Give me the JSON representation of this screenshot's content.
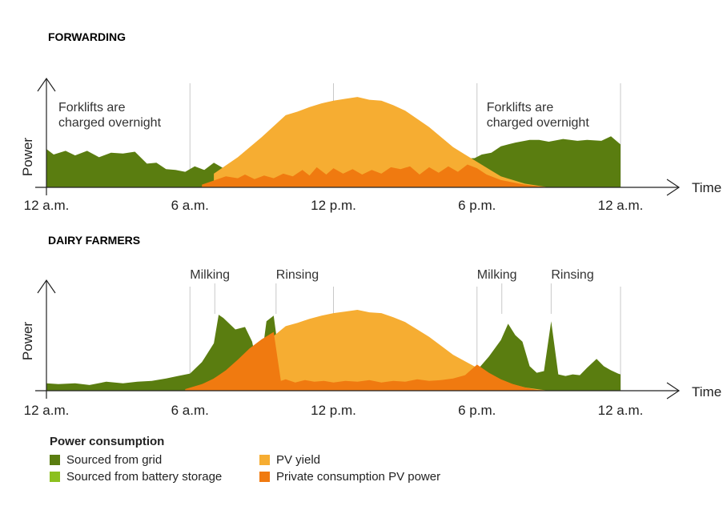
{
  "colors": {
    "grid": "#5a7d10",
    "battery": "#8cc01e",
    "pv_yield": "#f6ad32",
    "private_pv": "#f07a10",
    "accent_title": "#8cbb1e",
    "axis": "#222222",
    "guide": "#c8c8c8"
  },
  "legend": {
    "title": "Power consumption",
    "items": [
      {
        "label": "Sourced from grid",
        "color": "#5a7d10"
      },
      {
        "label": "PV yield",
        "color": "#f6ad32"
      },
      {
        "label": "Sourced from battery storage",
        "color": "#8cc01e"
      },
      {
        "label": "Private consumption PV power",
        "color": "#f07a10"
      }
    ]
  },
  "chart_data": [
    {
      "type": "area",
      "title": "FORWARDING",
      "ylabel": "Power",
      "xlabel": "Time",
      "xlim": [
        0,
        24
      ],
      "ylim": [
        0,
        100
      ],
      "tick_labels": [
        "12 a.m.",
        "6 a.m.",
        "12 p.m.",
        "6 p.m.",
        "12 a.m."
      ],
      "tick_values": [
        0,
        6,
        12,
        18,
        24
      ],
      "annotations": [
        {
          "lines": [
            "Forklifts are",
            "charged overnight"
          ],
          "x": 0.5
        },
        {
          "lines": [
            "Forklifts are",
            "charged overnight"
          ],
          "x": 18.4
        }
      ],
      "series": [
        {
          "name": "Sourced from grid",
          "color_key": "grid",
          "x": [
            0,
            0.3,
            0.8,
            1.2,
            1.7,
            2.2,
            2.7,
            3.2,
            3.7,
            4.2,
            4.6,
            5.0,
            5.4,
            5.8,
            6.2,
            6.6,
            7.0,
            7.4,
            17.9,
            18.2,
            18.6,
            19.0,
            19.6,
            20.2,
            20.6,
            21.0,
            21.6,
            22.2,
            22.6,
            23.2,
            23.6,
            24
          ],
          "y": [
            42,
            36,
            40,
            35,
            40,
            33,
            38,
            37,
            39,
            26,
            27,
            20,
            19,
            17,
            23,
            19,
            27,
            21,
            32,
            36,
            38,
            45,
            49,
            52,
            52,
            50,
            53,
            51,
            52,
            51,
            56,
            47
          ]
        },
        {
          "name": "PV yield",
          "color_key": "pv_yield",
          "x": [
            7.0,
            8.0,
            9.0,
            10.0,
            10.5,
            11.0,
            11.5,
            12.0,
            12.5,
            13.0,
            13.5,
            14.0,
            14.5,
            15.0,
            15.5,
            16.0,
            16.5,
            17.0,
            17.5,
            18.0,
            18.5,
            19.0,
            20.0,
            21.0
          ],
          "y": [
            15,
            33,
            55,
            79,
            83,
            88,
            92,
            95,
            97,
            99,
            96,
            95,
            90,
            84,
            75,
            66,
            55,
            44,
            36,
            28,
            20,
            12,
            4,
            0
          ]
        },
        {
          "name": "Private consumption PV power",
          "color_key": "private_pv",
          "x": [
            6.5,
            7.5,
            8.0,
            8.3,
            8.7,
            9.1,
            9.5,
            9.9,
            10.3,
            10.7,
            11.0,
            11.3,
            11.7,
            12.0,
            12.4,
            12.8,
            13.2,
            13.6,
            14.0,
            14.4,
            14.8,
            15.2,
            15.6,
            16.0,
            16.4,
            16.8,
            17.2,
            17.6,
            18.0,
            18.4,
            19.0,
            20.0,
            21.0
          ],
          "y": [
            3,
            12,
            10,
            14,
            9,
            13,
            10,
            15,
            12,
            19,
            13,
            22,
            14,
            21,
            15,
            20,
            14,
            19,
            15,
            22,
            20,
            23,
            14,
            22,
            16,
            23,
            17,
            25,
            21,
            14,
            8,
            3,
            0
          ]
        }
      ]
    },
    {
      "type": "area",
      "title": "DAIRY FARMERS",
      "ylabel": "Power",
      "xlabel": "Time",
      "xlim": [
        0,
        24
      ],
      "ylim": [
        0,
        100
      ],
      "tick_labels": [
        "12 a.m.",
        "6 a.m.",
        "12 p.m.",
        "6 p.m.",
        "12 a.m."
      ],
      "tick_values": [
        0,
        6,
        12,
        18,
        24
      ],
      "annotations": [
        {
          "text": "Milking",
          "x": 6.0
        },
        {
          "text": "Rinsing",
          "x": 9.6
        },
        {
          "text": "Milking",
          "x": 18.0
        },
        {
          "text": "Rinsing",
          "x": 21.1
        }
      ],
      "series": [
        {
          "name": "Sourced from grid",
          "color_key": "grid",
          "x": [
            0,
            0.5,
            1.2,
            1.8,
            2.5,
            3.2,
            3.8,
            4.4,
            5.0,
            5.5,
            6.0,
            6.5,
            7.0,
            7.2,
            7.4,
            7.9,
            8.3,
            8.6,
            8.9,
            9.2,
            9.5,
            9.7,
            10.0,
            11.0,
            17.6,
            18.0,
            18.5,
            19.0,
            19.3,
            19.6,
            19.9,
            20.2,
            20.5,
            20.8,
            21.1,
            21.4,
            21.7,
            22.0,
            22.3,
            22.6,
            23.0,
            23.3,
            23.6,
            23.9,
            24
          ],
          "y": [
            9,
            8,
            9,
            7,
            11,
            9,
            11,
            12,
            15,
            18,
            21,
            35,
            58,
            93,
            89,
            75,
            78,
            60,
            18,
            85,
            92,
            48,
            35,
            0,
            0,
            25,
            42,
            62,
            82,
            68,
            60,
            30,
            22,
            24,
            85,
            20,
            18,
            20,
            19,
            28,
            39,
            30,
            25,
            21,
            20
          ]
        },
        {
          "name": "PV yield",
          "color_key": "pv_yield",
          "x": [
            7.0,
            8.0,
            9.0,
            10.0,
            10.5,
            11.0,
            11.5,
            12.0,
            12.5,
            13.0,
            13.5,
            14.0,
            14.5,
            15.0,
            15.5,
            16.0,
            16.5,
            17.0,
            17.5,
            18.0,
            18.5,
            19.0,
            20.0,
            21.0
          ],
          "y": [
            15,
            33,
            55,
            79,
            83,
            88,
            92,
            95,
            97,
            99,
            96,
            95,
            90,
            84,
            75,
            66,
            55,
            44,
            36,
            28,
            20,
            12,
            4,
            0
          ]
        },
        {
          "name": "Private consumption PV power",
          "color_key": "private_pv",
          "x": [
            5.8,
            6.5,
            7.0,
            7.5,
            8.0,
            8.5,
            9.0,
            9.5,
            9.8,
            10.0,
            10.4,
            10.8,
            11.2,
            11.6,
            12.0,
            12.5,
            13.0,
            13.5,
            14.0,
            14.5,
            15.0,
            15.5,
            16.0,
            16.5,
            17.0,
            17.5,
            18.0,
            18.5,
            19.0,
            19.5,
            20.0,
            20.5,
            21.0
          ],
          "y": [
            2,
            8,
            15,
            25,
            38,
            52,
            63,
            72,
            12,
            14,
            10,
            13,
            11,
            12,
            10,
            12,
            11,
            13,
            10,
            12,
            11,
            14,
            12,
            13,
            15,
            19,
            32,
            22,
            14,
            8,
            4,
            1,
            0
          ]
        }
      ]
    }
  ]
}
